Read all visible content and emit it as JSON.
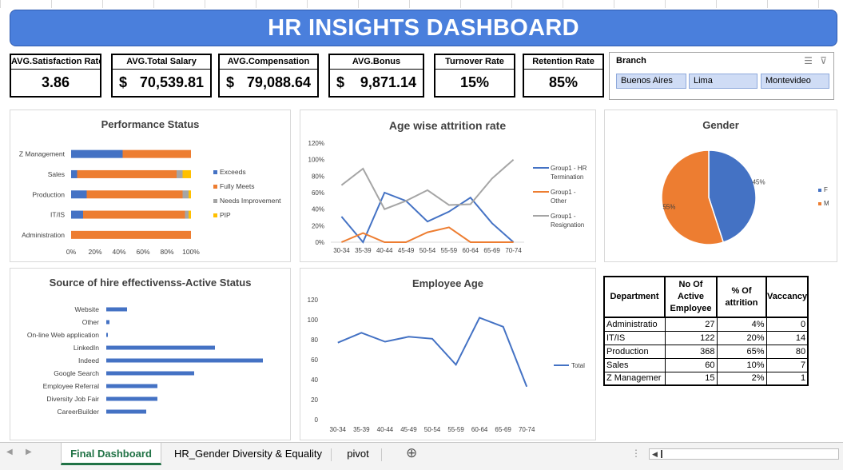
{
  "title": "HR INSIGHTS DASHBOARD",
  "kpis": {
    "satisfaction": {
      "label": "AVG.Satisfaction Rate",
      "value": "3.86"
    },
    "salary": {
      "label": "AVG.Total Salary",
      "currency": "$",
      "value": "70,539.81"
    },
    "compensation": {
      "label": "AVG.Compensation",
      "currency": "$",
      "value": "79,088.64"
    },
    "bonus": {
      "label": "AVG.Bonus",
      "currency": "$",
      "value": "9,871.14"
    },
    "turnover": {
      "label": "Turnover Rate",
      "value": "15%"
    },
    "retention": {
      "label": "Retention Rate",
      "value": "85%"
    }
  },
  "slicer": {
    "title": "Branch",
    "items": [
      "Buenos Aires",
      "Lima",
      "Montevideo"
    ],
    "icons": [
      "multi-select-icon",
      "clear-filter-icon"
    ]
  },
  "colors": {
    "blue": "#4472c4",
    "orange": "#ed7d31",
    "gray": "#a5a5a5",
    "yellow": "#ffc000",
    "banner": "#4a7fdc"
  },
  "chart_data": [
    {
      "id": "performance",
      "type": "bar",
      "orientation": "horizontal",
      "stacked": "percent",
      "title": "Performance Status",
      "categories": [
        "Z Management",
        "Sales",
        "Production",
        "IT/IS",
        "Administration"
      ],
      "series": [
        {
          "name": "Exceeds",
          "color": "#4472c4",
          "values": [
            43,
            5,
            13,
            10,
            0
          ]
        },
        {
          "name": "Fully Meets",
          "color": "#ed7d31",
          "values": [
            57,
            83,
            80,
            85,
            100
          ]
        },
        {
          "name": "Needs Improvement",
          "color": "#a5a5a5",
          "values": [
            0,
            5,
            5,
            3,
            0
          ]
        },
        {
          "name": "PIP",
          "color": "#ffc000",
          "values": [
            0,
            7,
            2,
            2,
            0
          ]
        }
      ],
      "xticks": [
        "0%",
        "20%",
        "40%",
        "60%",
        "80%",
        "100%"
      ],
      "xlim": [
        0,
        100
      ],
      "legend": "right"
    },
    {
      "id": "attrition",
      "type": "line",
      "title": "Age wise attrition rate",
      "categories": [
        "30-34",
        "35-39",
        "40-44",
        "45-49",
        "50-54",
        "55-59",
        "60-64",
        "65-69",
        "70-74"
      ],
      "series": [
        {
          "name": "Group1 - HR Termination",
          "legend_lines": [
            "Group1 - HR",
            "Termination"
          ],
          "color": "#4472c4",
          "values": [
            31,
            0,
            60,
            50,
            25,
            37,
            54,
            23,
            0
          ]
        },
        {
          "name": "Group1 - Other",
          "legend_lines": [
            "Group1 -",
            "Other"
          ],
          "color": "#ed7d31",
          "values": [
            0,
            11,
            0,
            0,
            12,
            18,
            0,
            0,
            0
          ]
        },
        {
          "name": "Group1 - Resignation",
          "legend_lines": [
            "Group1 -",
            "Resignation"
          ],
          "color": "#a5a5a5",
          "values": [
            69,
            89,
            40,
            50,
            63,
            45,
            46,
            77,
            100
          ]
        }
      ],
      "yticks": [
        "0%",
        "20%",
        "40%",
        "60%",
        "80%",
        "100%",
        "120%"
      ],
      "ylim": [
        0,
        120
      ],
      "legend": "right"
    },
    {
      "id": "gender",
      "type": "pie",
      "title": "Gender",
      "slices": [
        {
          "name": "F",
          "value": 45,
          "label": "45%",
          "color": "#4472c4"
        },
        {
          "name": "M",
          "value": 55,
          "label": "55%",
          "color": "#ed7d31"
        }
      ],
      "legend": "right"
    },
    {
      "id": "source",
      "type": "bar",
      "orientation": "horizontal",
      "title": "Source of hire effectivenss-Active Status",
      "categories": [
        "Website",
        "Other",
        "On-line Web application",
        "LinkedIn",
        "Indeed",
        "Google Search",
        "Employee Referral",
        "Diversity Job Fair",
        "CareerBuilder"
      ],
      "values": [
        13,
        2,
        1,
        68,
        98,
        55,
        32,
        32,
        25
      ],
      "xlim": [
        0,
        100
      ],
      "color": "#4472c4"
    },
    {
      "id": "age",
      "type": "line",
      "title": "Employee Age",
      "categories": [
        "30-34",
        "35-39",
        "40-44",
        "45-49",
        "50-54",
        "55-59",
        "60-64",
        "65-69",
        "70-74"
      ],
      "series": [
        {
          "name": "Total",
          "color": "#4472c4",
          "values": [
            77,
            87,
            78,
            83,
            81,
            55,
            102,
            93,
            33
          ]
        }
      ],
      "yticks": [
        "0",
        "20",
        "40",
        "60",
        "80",
        "100",
        "120"
      ],
      "ylim": [
        0,
        120
      ],
      "legend": "right"
    },
    {
      "id": "departments",
      "type": "table",
      "headers": [
        [
          "Department"
        ],
        [
          "No Of",
          "Active",
          "Employee"
        ],
        [
          "% Of",
          "attrition"
        ],
        [
          "Vaccancy"
        ]
      ],
      "rows": [
        [
          "Administratio",
          "27",
          "4%",
          "0"
        ],
        [
          "IT/IS",
          "122",
          "20%",
          "14"
        ],
        [
          "Production",
          "368",
          "65%",
          "80"
        ],
        [
          "Sales",
          "60",
          "10%",
          "7"
        ],
        [
          "Z Managemer",
          "15",
          "2%",
          "1"
        ]
      ]
    }
  ],
  "tabs": {
    "items": [
      "Final Dashboard",
      "HR_Gender Diversity & Equality",
      "pivot"
    ],
    "active": "Final Dashboard",
    "add": "⊕",
    "nav_prev": "◀",
    "nav_next": "▶"
  }
}
